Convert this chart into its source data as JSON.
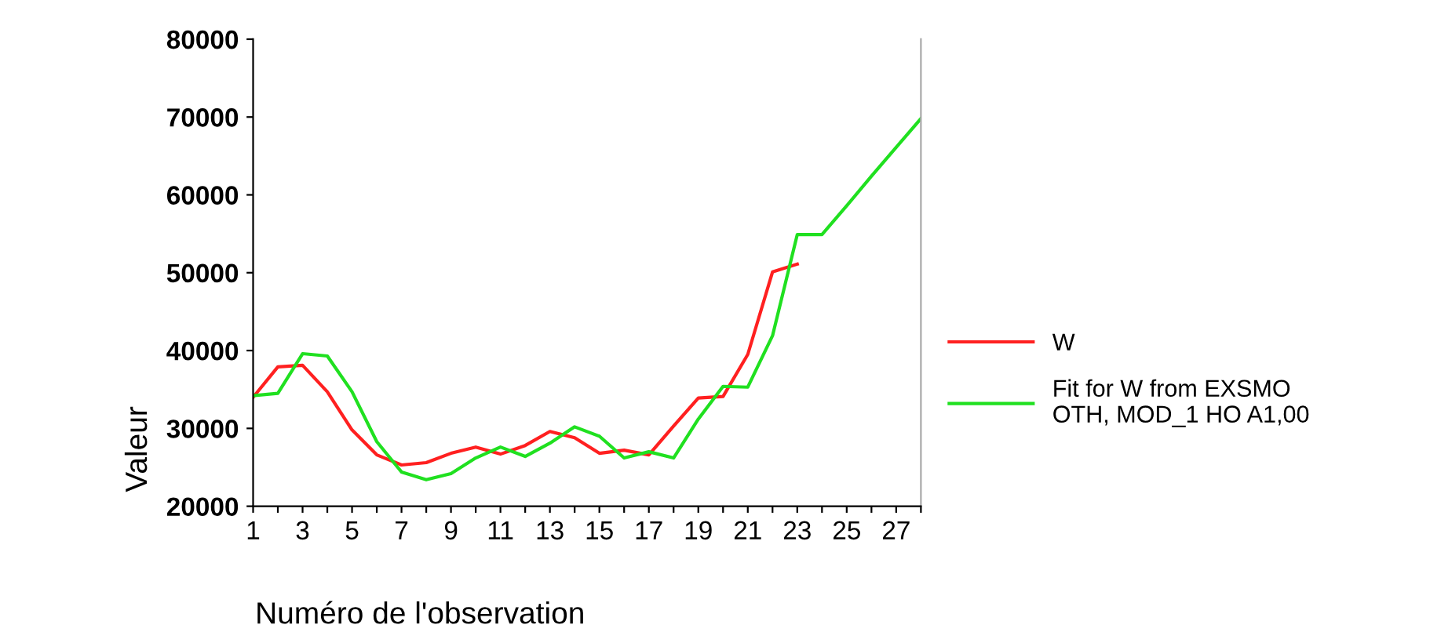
{
  "chart_data": {
    "type": "line",
    "xlabel": "Numéro de l'observation",
    "ylabel": "Valeur",
    "x": [
      1,
      2,
      3,
      4,
      5,
      6,
      7,
      8,
      9,
      10,
      11,
      12,
      13,
      14,
      15,
      16,
      17,
      18,
      19,
      20,
      21,
      22,
      23,
      24,
      25,
      26,
      27,
      28
    ],
    "series": [
      {
        "name": "W",
        "color": "#ff2020",
        "values": [
          34000,
          37900,
          38100,
          34700,
          29800,
          26600,
          25300,
          25600,
          26800,
          27600,
          26700,
          27800,
          29600,
          28800,
          26800,
          27200,
          26600,
          30300,
          33900,
          34100,
          39500,
          50100,
          51100,
          null,
          null,
          null,
          null,
          null
        ]
      },
      {
        "name": "Fit for W from EXSMO\nOTH, MOD_1 HO A1,00",
        "color": "#20e020",
        "values": [
          34200,
          34500,
          39600,
          39300,
          34700,
          28300,
          24400,
          23400,
          24200,
          26200,
          27600,
          26400,
          28100,
          30200,
          29000,
          26200,
          27000,
          26200,
          31200,
          35400,
          35300,
          41900,
          54900,
          54900,
          58600,
          62400,
          66100,
          69800
        ]
      }
    ],
    "xlim": [
      1,
      28
    ],
    "xticks": [
      1,
      {
        "value": 2,
        "label": null
      },
      3,
      {
        "value": 4,
        "label": null
      },
      5,
      {
        "value": 6,
        "label": null
      },
      7,
      {
        "value": 8,
        "label": null
      },
      9,
      {
        "value": 10,
        "label": null
      },
      11,
      {
        "value": 12,
        "label": null
      },
      13,
      {
        "value": 14,
        "label": null
      },
      15,
      {
        "value": 16,
        "label": null
      },
      17,
      {
        "value": 18,
        "label": null
      },
      19,
      {
        "value": 20,
        "label": null
      },
      21,
      {
        "value": 22,
        "label": null
      },
      23,
      {
        "value": 24,
        "label": null
      },
      25,
      {
        "value": 26,
        "label": null
      },
      27,
      {
        "value": 28,
        "label": null
      }
    ],
    "ylim": [
      20000,
      80000
    ],
    "yticks": [
      20000,
      30000,
      40000,
      50000,
      60000,
      70000,
      80000
    ],
    "grid": false,
    "legend": "right",
    "marker": "none",
    "line_style": "solid"
  }
}
